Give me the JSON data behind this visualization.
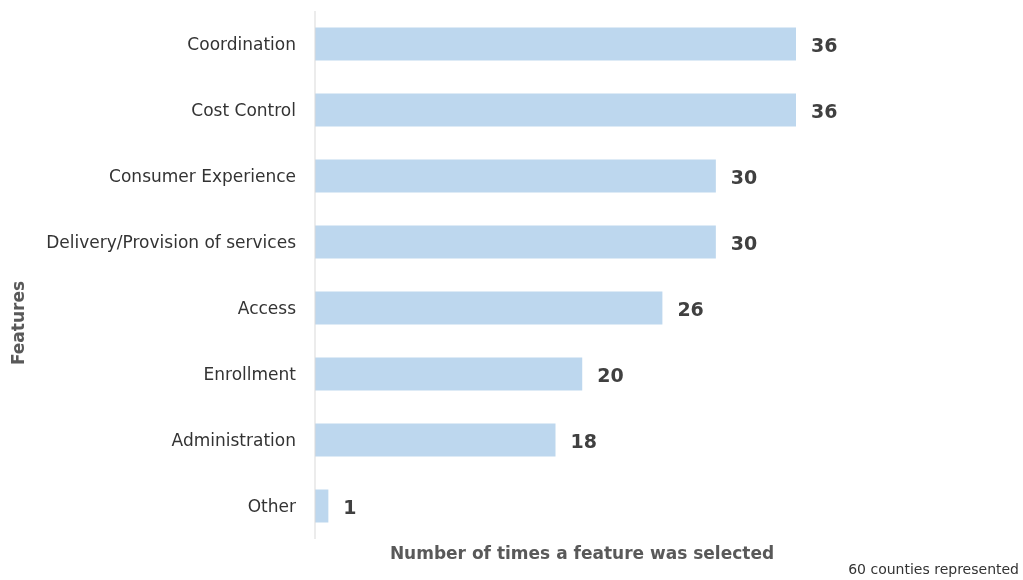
{
  "chart_data": {
    "type": "bar",
    "orientation": "horizontal",
    "categories": [
      "Coordination",
      "Cost Control",
      "Consumer Experience",
      "Delivery/Provision of services",
      "Access",
      "Enrollment",
      "Administration",
      "Other"
    ],
    "values": [
      36,
      36,
      30,
      30,
      26,
      20,
      18,
      1
    ],
    "color": "#bdd7ee",
    "data_labels": true,
    "xlabel": "Number of times a feature was selected",
    "ylabel": "Features",
    "annotations": [
      "60 counties represented"
    ]
  }
}
